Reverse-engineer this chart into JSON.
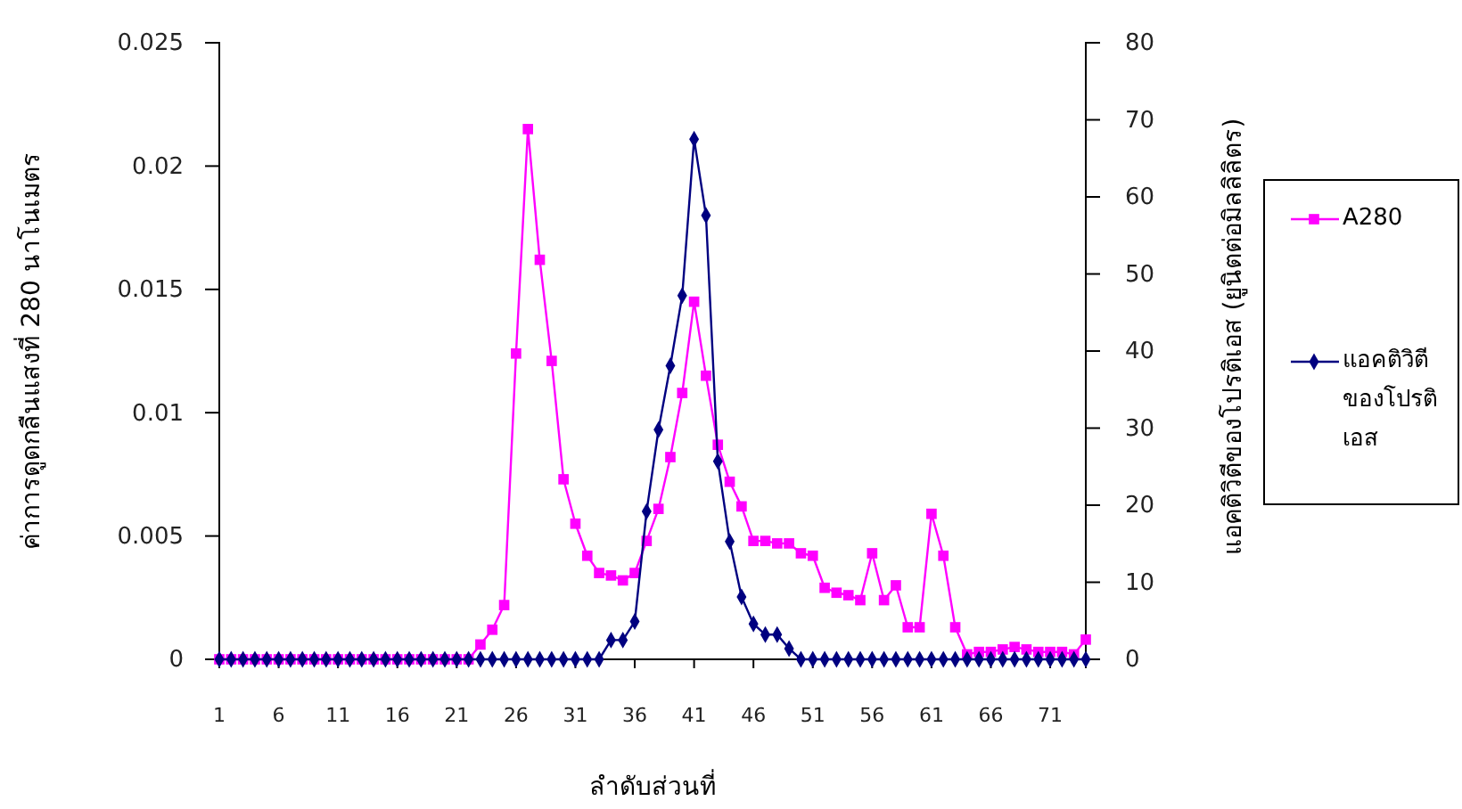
{
  "chart_data": {
    "type": "line",
    "xlabel": "ลำดับส่วนที่",
    "ylabel": "ค่าการดูดกลืนแสงที่ 280 นาโนเมตร",
    "y2label": "แอคติวิตีของโปรติเอส (ยูนิตต่อมิลลิลิตร)",
    "x": [
      1,
      2,
      3,
      4,
      5,
      6,
      7,
      8,
      9,
      10,
      11,
      12,
      13,
      14,
      15,
      16,
      17,
      18,
      19,
      20,
      21,
      22,
      23,
      24,
      25,
      26,
      27,
      28,
      29,
      30,
      31,
      32,
      33,
      34,
      35,
      36,
      37,
      38,
      39,
      40,
      41,
      42,
      43,
      44,
      45,
      46,
      47,
      48,
      49,
      50,
      51,
      52,
      53,
      54,
      55,
      56,
      57,
      58,
      59,
      60,
      61,
      62,
      63,
      64,
      65,
      66,
      67,
      68,
      69,
      70,
      71,
      72,
      73,
      74
    ],
    "xlim": [
      1,
      74
    ],
    "xticks": [
      1,
      6,
      11,
      16,
      21,
      26,
      31,
      36,
      41,
      46,
      51,
      56,
      61,
      66,
      71
    ],
    "ylim": [
      0,
      0.025
    ],
    "yticks": [
      0,
      0.005,
      0.01,
      0.015,
      0.02,
      0.025
    ],
    "y2lim": [
      0,
      80
    ],
    "y2ticks": [
      0,
      10,
      20,
      30,
      40,
      50,
      60,
      70,
      80
    ],
    "grid": false,
    "legend": "right",
    "series": [
      {
        "name": "A280",
        "color": "#ff00ff",
        "marker": "square",
        "values": [
          0,
          0,
          0,
          0,
          0,
          0,
          0,
          0,
          0,
          0,
          0,
          0,
          0,
          0,
          0,
          0,
          0,
          0,
          0,
          0,
          0,
          0,
          0.0006,
          0.0012,
          0.0022,
          0.0124,
          0.0215,
          0.0162,
          0.0121,
          0.0073,
          0.0055,
          0.0042,
          0.0035,
          0.0034,
          0.0032,
          0.0035,
          0.0048,
          0.0061,
          0.0082,
          0.0108,
          0.0145,
          0.0115,
          0.0087,
          0.0072,
          0.0062,
          0.0048,
          0.0048,
          0.0047,
          0.0047,
          0.0043,
          0.0042,
          0.0029,
          0.0027,
          0.0026,
          0.0024,
          0.0043,
          0.0024,
          0.003,
          0.0013,
          0.0013,
          0.0059,
          0.0042,
          0.0013,
          0.0002,
          0.0003,
          0.0003,
          0.0004,
          0.0005,
          0.0004,
          0.0003,
          0.0003,
          0.0003,
          0.0002,
          0.0008
        ]
      },
      {
        "name": "แอคติวิตีของโปรติเอส",
        "color": "#000080",
        "marker": "diamond",
        "axis": "y2",
        "values": [
          0,
          0,
          0,
          0,
          0,
          0,
          0,
          0,
          0,
          0,
          0,
          0,
          0,
          0,
          0,
          0,
          0,
          0,
          0,
          0,
          0,
          0,
          0,
          0,
          0,
          0,
          0,
          0,
          0,
          0,
          0,
          0,
          0,
          2.5,
          2.5,
          4.9,
          19.2,
          29.8,
          38.1,
          47.2,
          67.5,
          57.6,
          25.7,
          15.3,
          8.1,
          4.6,
          3.2,
          3.2,
          1.4,
          0,
          0,
          0,
          0,
          0,
          0,
          0,
          0,
          0,
          0,
          0,
          0,
          0,
          0,
          0,
          0,
          0,
          0,
          0,
          0,
          0,
          0,
          0,
          0,
          0
        ]
      }
    ]
  }
}
